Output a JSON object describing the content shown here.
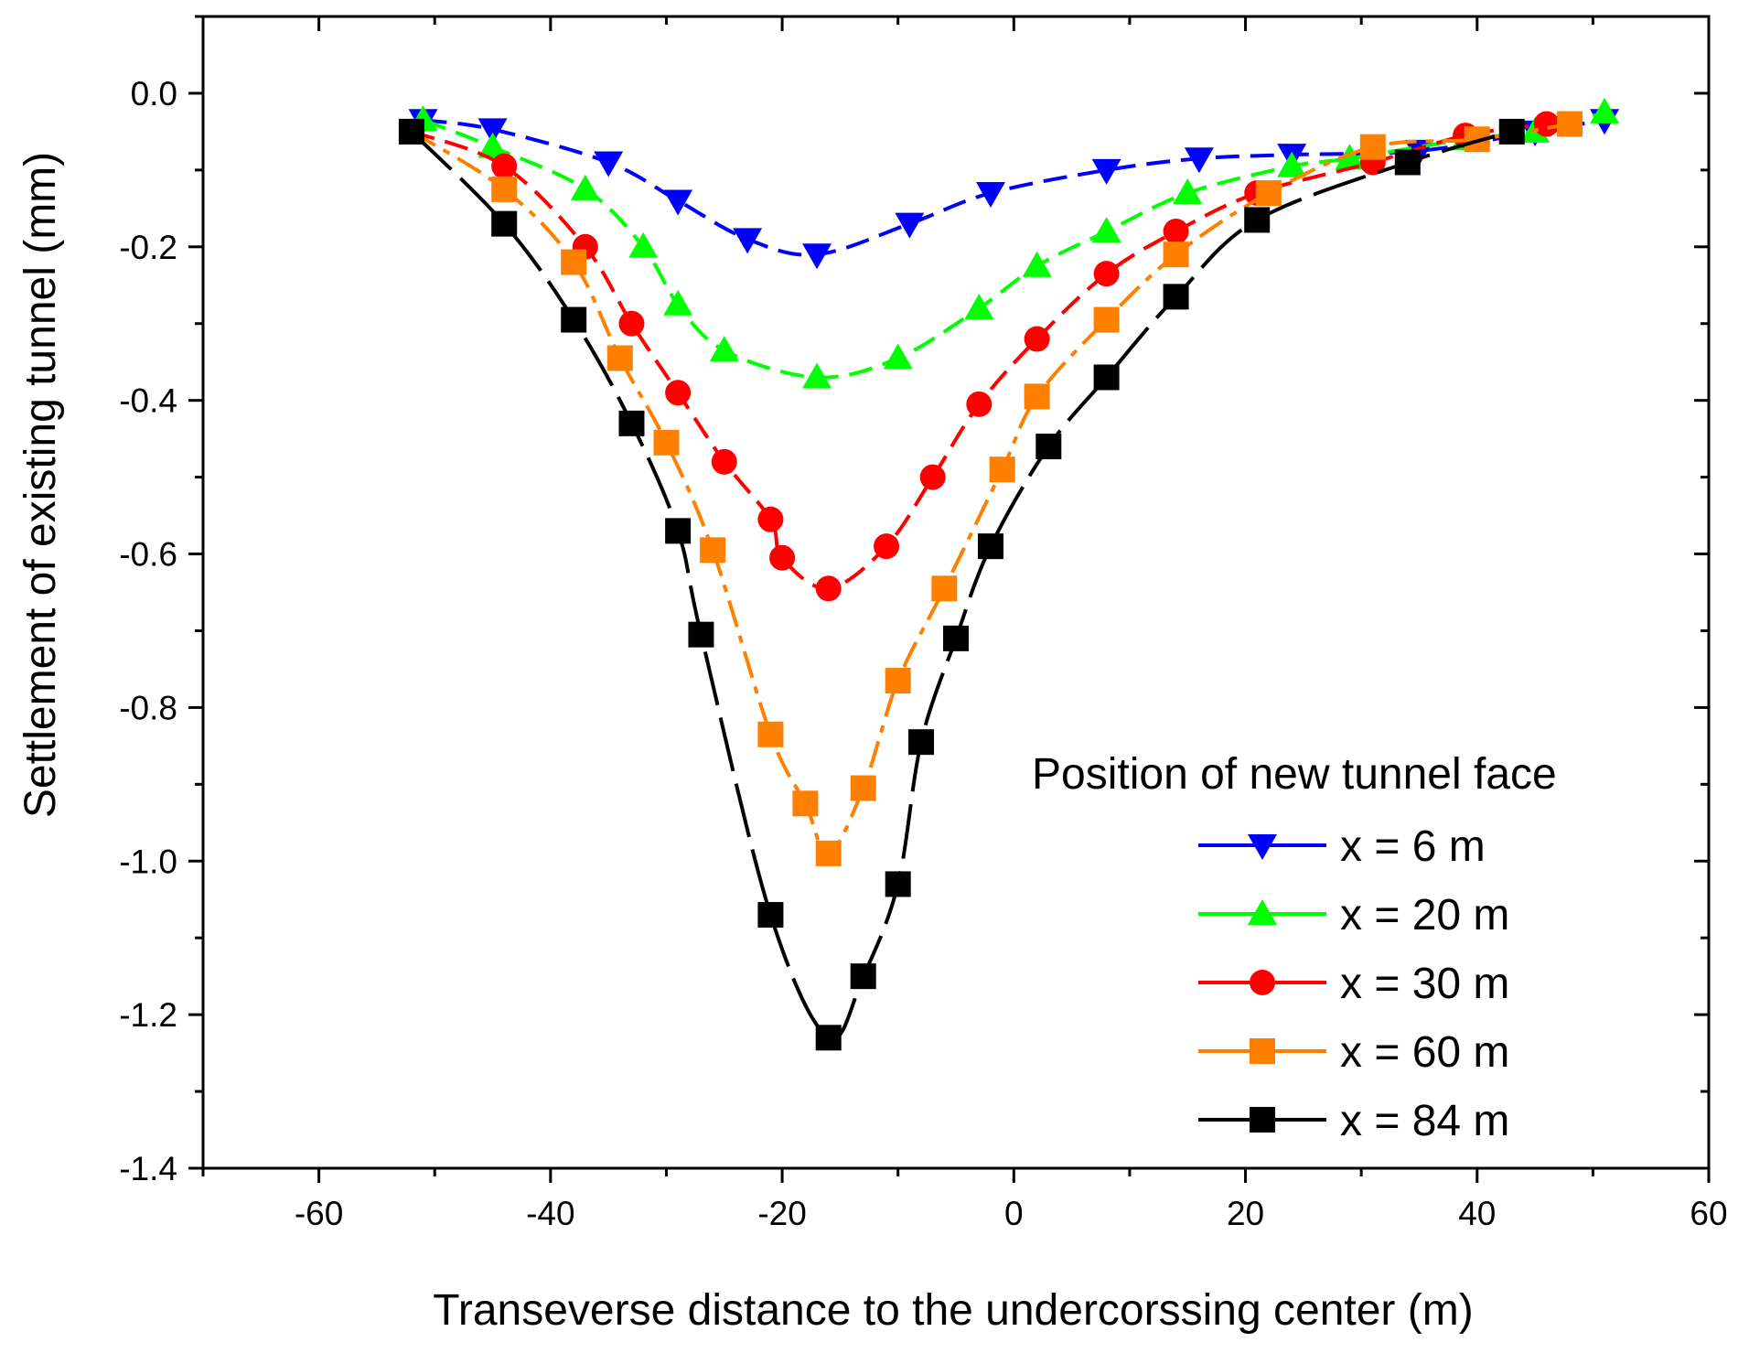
{
  "chart_data": {
    "type": "line",
    "title": "",
    "xlabel": "Transeverse distance to the undercorssing center (m)",
    "ylabel": "Settlement of existing tunnel (mm)",
    "xlim": [
      -70,
      60
    ],
    "ylim": [
      -1.4,
      0.1
    ],
    "x_ticks": [
      -60,
      -40,
      -20,
      0,
      20,
      40,
      60
    ],
    "x_tick_labels": [
      "-60",
      "-40",
      "-20",
      "0",
      "20",
      "40",
      "60"
    ],
    "y_ticks": [
      0.0,
      -0.2,
      -0.4,
      -0.6,
      -0.8,
      -1.0,
      -1.2,
      -1.4
    ],
    "y_tick_labels": [
      "0.0",
      "-0.2",
      "-0.4",
      "-0.6",
      "-0.8",
      "-1.0",
      "-1.2",
      "-1.4"
    ],
    "grid": false,
    "legend": {
      "title": "Position of new tunnel face",
      "placement": "bottom-right"
    },
    "series": [
      {
        "name": "x = 6 m",
        "color": "#0000ff",
        "marker": "triangle-down",
        "dash": "dash",
        "x": [
          -51,
          -45,
          -35,
          -29,
          -23,
          -17,
          -9,
          -2,
          8,
          16,
          24,
          35,
          45,
          51
        ],
        "y": [
          -0.035,
          -0.047,
          -0.09,
          -0.14,
          -0.19,
          -0.21,
          -0.17,
          -0.13,
          -0.1,
          -0.085,
          -0.08,
          -0.075,
          -0.05,
          -0.035
        ]
      },
      {
        "name": "x = 20 m",
        "color": "#00ff00",
        "marker": "triangle-up",
        "dash": "dash",
        "x": [
          -51,
          -45,
          -37,
          -32,
          -29,
          -25,
          -17,
          -10,
          -3,
          2,
          8,
          15,
          24,
          29,
          39,
          45,
          51
        ],
        "y": [
          -0.035,
          -0.07,
          -0.125,
          -0.2,
          -0.275,
          -0.335,
          -0.37,
          -0.345,
          -0.28,
          -0.225,
          -0.18,
          -0.13,
          -0.095,
          -0.085,
          -0.06,
          -0.05,
          -0.025
        ]
      },
      {
        "name": "x = 30 m",
        "color": "#ff0000",
        "marker": "circle",
        "dash": "dash",
        "x": [
          -52,
          -44,
          -37,
          -33,
          -29,
          -25,
          -21,
          -20,
          -16,
          -11,
          -7,
          -3,
          2,
          8,
          14,
          21,
          31,
          39,
          46
        ],
        "y": [
          -0.05,
          -0.095,
          -0.2,
          -0.3,
          -0.39,
          -0.48,
          -0.555,
          -0.605,
          -0.645,
          -0.59,
          -0.5,
          -0.405,
          -0.32,
          -0.235,
          -0.18,
          -0.13,
          -0.09,
          -0.055,
          -0.04
        ]
      },
      {
        "name": "x = 60 m",
        "color": "#ff8000",
        "marker": "square",
        "dash": "dashdot",
        "x": [
          -52,
          -44,
          -38,
          -34,
          -30,
          -26,
          -21,
          -18,
          -16,
          -13,
          -10,
          -6,
          -1,
          2,
          8,
          14,
          22,
          31,
          40,
          48
        ],
        "y": [
          -0.05,
          -0.125,
          -0.22,
          -0.345,
          -0.455,
          -0.595,
          -0.835,
          -0.925,
          -0.99,
          -0.905,
          -0.765,
          -0.645,
          -0.49,
          -0.395,
          -0.295,
          -0.21,
          -0.13,
          -0.07,
          -0.06,
          -0.04
        ]
      },
      {
        "name": "x = 84 m",
        "color": "#000000",
        "marker": "square",
        "dash": "longdash",
        "x": [
          -52,
          -44,
          -38,
          -33,
          -29,
          -27,
          -21,
          -16,
          -13,
          -10,
          -8,
          -5,
          -2,
          3,
          8,
          14,
          21,
          34,
          43
        ],
        "y": [
          -0.05,
          -0.17,
          -0.295,
          -0.43,
          -0.57,
          -0.705,
          -1.07,
          -1.23,
          -1.15,
          -1.03,
          -0.845,
          -0.71,
          -0.59,
          -0.46,
          -0.37,
          -0.265,
          -0.165,
          -0.09,
          -0.05
        ]
      }
    ]
  }
}
